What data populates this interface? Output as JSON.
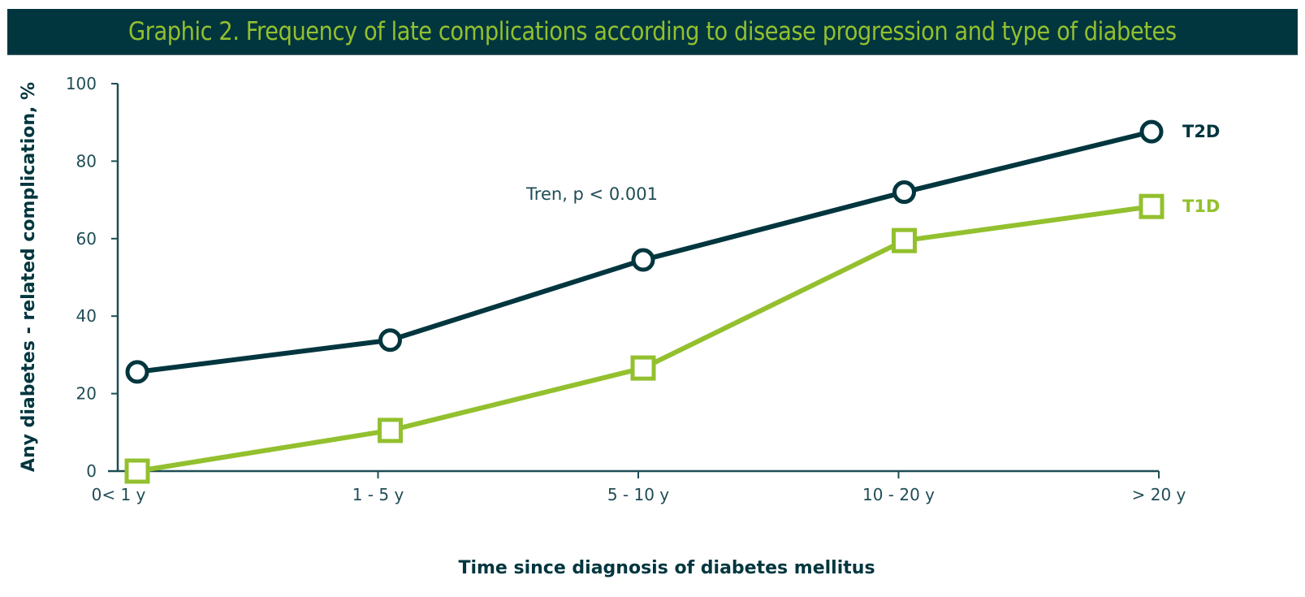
{
  "header": {
    "title": "Graphic 2. Frequency of late complications according to disease progression and type of diabetes"
  },
  "colors": {
    "header_bg": "#02363f",
    "header_text": "#93c02e",
    "t2d": "#02363f",
    "t1d": "#93c02e",
    "axis": "#1f4d55"
  },
  "chart_data": {
    "type": "line",
    "title": "Graphic 2. Frequency of late complications according to disease progression and type of diabetes",
    "xlabel": "Time since diagnosis of diabetes mellitus",
    "ylabel": "Any diabetes - related complication, %",
    "categories": [
      "0< 1 y",
      "1 - 5 y",
      "5 - 10 y",
      "10 - 20 y",
      "> 20 y"
    ],
    "ylim": [
      0,
      100
    ],
    "yticks": [
      "0",
      "20",
      "40",
      "60",
      "80",
      "100"
    ],
    "grid": false,
    "legend_placement": "right (end-of-line labels)",
    "annotation": "Tren, p < 0.001",
    "series": [
      {
        "name": "T2D",
        "marker": "circle",
        "color": "#02363f",
        "values": [
          25.6,
          33.8,
          54.5,
          72.0,
          87.6
        ]
      },
      {
        "name": "T1D",
        "marker": "square",
        "color": "#93c02e",
        "values": [
          0.0,
          10.5,
          26.6,
          59.5,
          68.3
        ]
      }
    ]
  }
}
